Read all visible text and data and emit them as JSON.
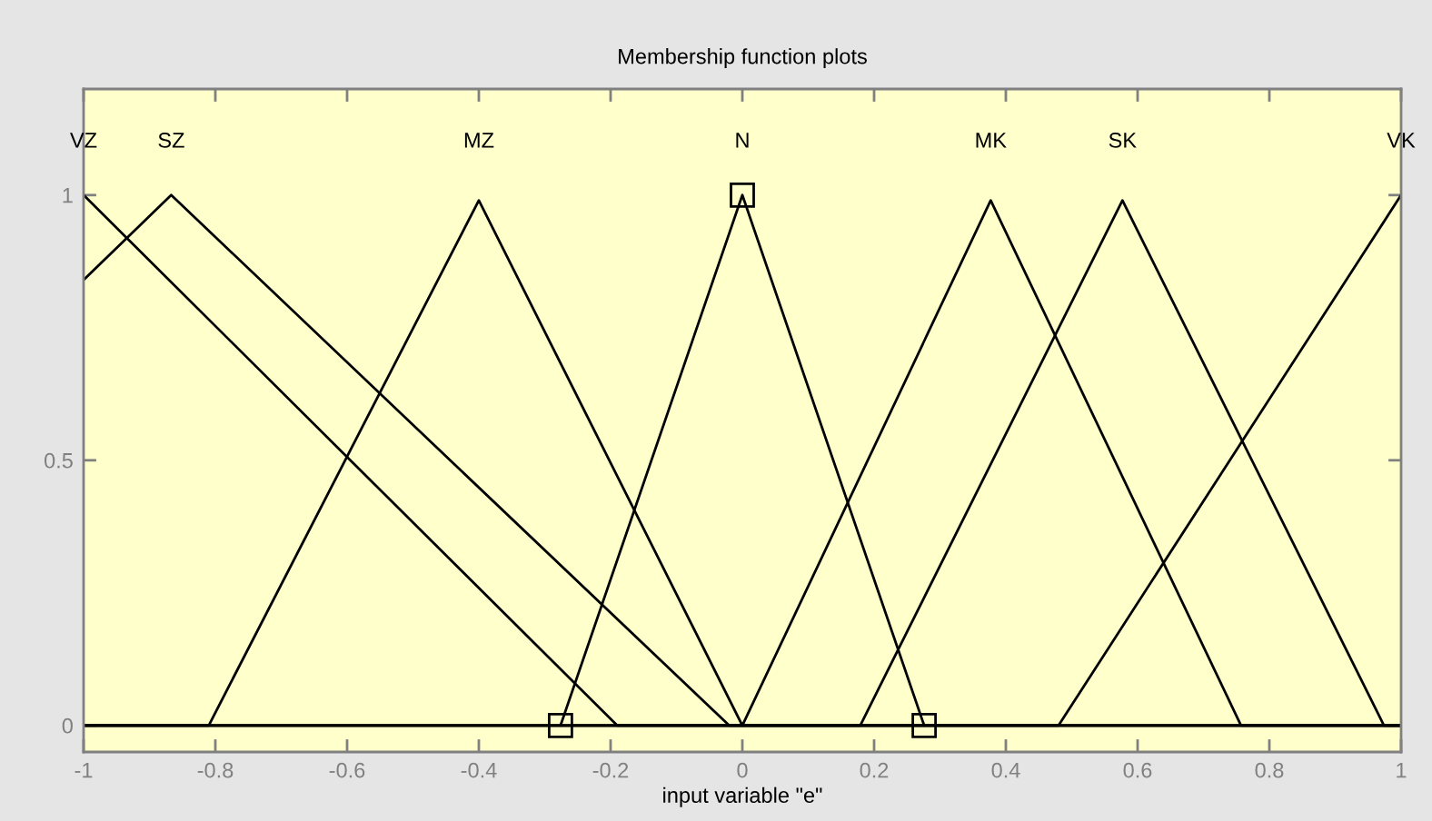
{
  "chart_data": {
    "type": "line",
    "title": "Membership function plots",
    "xlabel": "input variable \"e\"",
    "xlim": [
      -1,
      1
    ],
    "ylim": [
      -0.05,
      1.2
    ],
    "xticks": [
      -1,
      -0.8,
      -0.6,
      -0.4,
      -0.2,
      0,
      0.2,
      0.4,
      0.6,
      0.8,
      1
    ],
    "yticks": [
      0,
      0.5,
      1
    ],
    "grid": false,
    "legend": false,
    "series": [
      {
        "name": "VZ",
        "color": "#000000",
        "x": [
          -1,
          -0.19,
          1
        ],
        "values": [
          1,
          0,
          0
        ]
      },
      {
        "name": "SZ",
        "color": "#000000",
        "x": [
          -1,
          -0.867,
          -0.02,
          1
        ],
        "values": [
          0.84,
          1,
          0,
          0
        ]
      },
      {
        "name": "MZ",
        "color": "#000000",
        "x": [
          -1,
          -0.81,
          -0.4,
          0,
          1
        ],
        "values": [
          0,
          0,
          0.99,
          0,
          0
        ]
      },
      {
        "name": "N",
        "color": "#000000",
        "marker": "square",
        "x": [
          -0.276,
          0,
          0.276
        ],
        "values": [
          0,
          1,
          0
        ]
      },
      {
        "name": "MK",
        "color": "#000000",
        "x": [
          -1,
          0,
          0.377,
          0.757,
          1
        ],
        "values": [
          0,
          0,
          0.99,
          0,
          0
        ]
      },
      {
        "name": "SK",
        "color": "#000000",
        "x": [
          -1,
          0.179,
          0.577,
          0.974,
          1
        ],
        "values": [
          0,
          0,
          0.99,
          0,
          0
        ]
      },
      {
        "name": "VK",
        "color": "#000000",
        "x": [
          -1,
          0.48,
          1
        ],
        "values": [
          0,
          0,
          1
        ]
      }
    ]
  }
}
